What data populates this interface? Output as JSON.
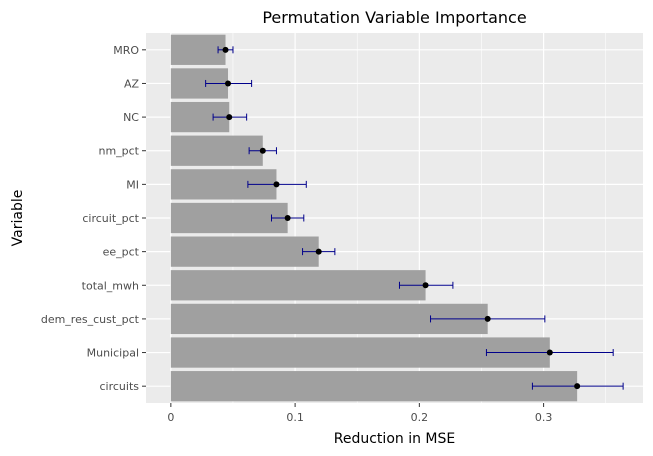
{
  "chart_data": {
    "type": "bar",
    "orientation": "horizontal",
    "title": "Permutation Variable Importance",
    "xlabel": "Reduction in MSE",
    "ylabel": "Variable",
    "xlim": [
      -0.02,
      0.38
    ],
    "xticks": [
      0,
      0.1,
      0.2,
      0.3
    ],
    "xtick_labels": [
      "0",
      "0.1",
      "0.2",
      "0.3"
    ],
    "grid": true,
    "legend": "none",
    "categories": [
      "MRO",
      "AZ",
      "NC",
      "nm_pct",
      "MI",
      "circuit_pct",
      "ee_pct",
      "total_mwh",
      "dem_res_cust_pct",
      "Municipal",
      "circuits"
    ],
    "values": [
      0.044,
      0.046,
      0.047,
      0.074,
      0.085,
      0.094,
      0.119,
      0.205,
      0.255,
      0.305,
      0.327
    ],
    "error_low": [
      0.038,
      0.028,
      0.034,
      0.063,
      0.062,
      0.081,
      0.106,
      0.184,
      0.209,
      0.254,
      0.291
    ],
    "error_high": [
      0.05,
      0.065,
      0.061,
      0.085,
      0.109,
      0.107,
      0.132,
      0.227,
      0.301,
      0.356,
      0.364
    ],
    "colors": {
      "panel_background": "#ebebeb",
      "grid_major": "#ffffff",
      "bar_fill": "#a0a0a0",
      "errorbar": "#00008b",
      "point": "#000000"
    }
  }
}
